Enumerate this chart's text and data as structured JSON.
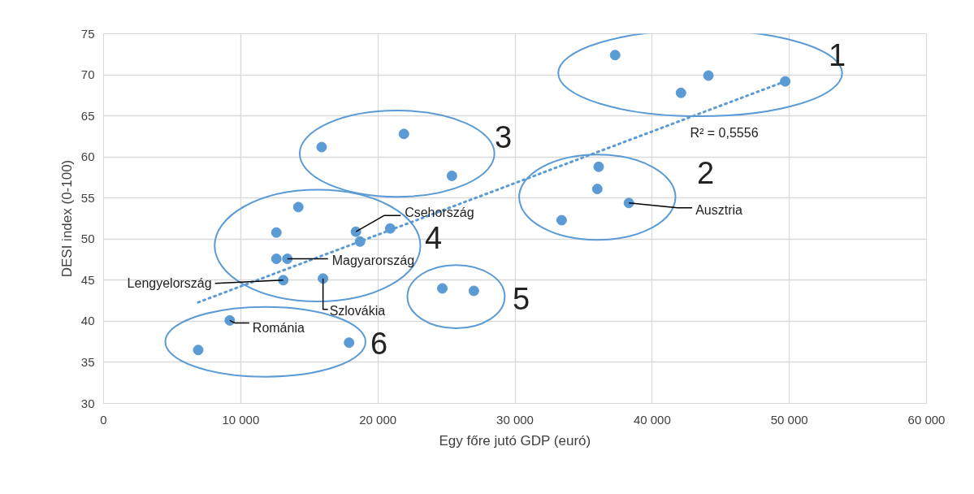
{
  "chart_data": {
    "type": "scatter",
    "xlabel": "Egy főre jutó GDP (euró)",
    "ylabel": "DESI index (0-100)",
    "xlim": [
      0,
      60000
    ],
    "ylim": [
      30,
      75
    ],
    "xticks": [
      {
        "value": 0,
        "label": "0"
      },
      {
        "value": 10000,
        "label": "10 000"
      },
      {
        "value": 20000,
        "label": "20 000"
      },
      {
        "value": 30000,
        "label": "30 000"
      },
      {
        "value": 40000,
        "label": "40 000"
      },
      {
        "value": 50000,
        "label": "50 000"
      },
      {
        "value": 60000,
        "label": "60 000"
      }
    ],
    "yticks": [
      30,
      35,
      40,
      45,
      50,
      55,
      60,
      65,
      70,
      75
    ],
    "grid": true,
    "marker": "circle",
    "series": [
      {
        "color": "#5b9bd5",
        "x": [
          37300,
          42100,
          44100,
          49700,
          21900,
          15900,
          25400,
          36100,
          36000,
          38300,
          33400,
          14200,
          12600,
          18400,
          20900,
          18700,
          12600,
          13400,
          13100,
          16000,
          24700,
          27000,
          9200,
          6900,
          17900
        ],
        "values": [
          72.4,
          67.8,
          69.9,
          69.2,
          62.8,
          61.2,
          57.7,
          58.8,
          56.1,
          54.4,
          52.3,
          53.9,
          50.8,
          50.9,
          51.3,
          49.7,
          47.6,
          47.6,
          45.0,
          45.2,
          44.0,
          43.7,
          40.1,
          36.5,
          37.4
        ]
      },
      {
        "type": "line",
        "color": "#5b9bd5",
        "line_style": "dotted",
        "marker": "none",
        "x": [
          6900,
          49700
        ],
        "values": [
          42.3,
          69.2
        ]
      }
    ],
    "annotations": [
      {
        "text": "Csehország",
        "x": 18400,
        "y": 50.9
      },
      {
        "text": "Magyarország",
        "x": 13400,
        "y": 47.6
      },
      {
        "text": "Lengyelország",
        "x": 13100,
        "y": 45.0
      },
      {
        "text": "Szlovákia",
        "x": 16000,
        "y": 45.2
      },
      {
        "text": "Románia",
        "x": 9200,
        "y": 40.1
      },
      {
        "text": "Ausztria",
        "x": 38300,
        "y": 54.4
      },
      "R² = 0,5556",
      "1",
      "2",
      "3",
      "4",
      "5",
      "6"
    ]
  }
}
